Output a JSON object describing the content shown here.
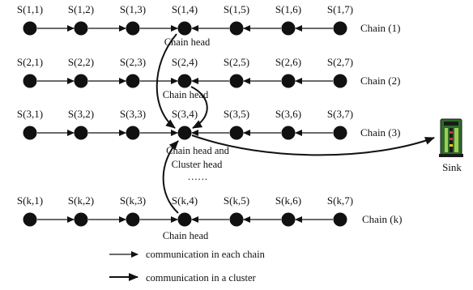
{
  "diagram": {
    "rows": [
      {
        "nodes": [
          "S(1,1)",
          "S(1,2)",
          "S(1,3)",
          "S(1,4)",
          "S(1,5)",
          "S(1,6)",
          "S(1,7)"
        ],
        "chain_label": "Chain (1)",
        "head_label": "Chain head"
      },
      {
        "nodes": [
          "S(2,1)",
          "S(2,2)",
          "S(2,3)",
          "S(2,4)",
          "S(2,5)",
          "S(2,6)",
          "S(2,7)"
        ],
        "chain_label": "Chain (2)",
        "head_label": "Chain head"
      },
      {
        "nodes": [
          "S(3,1)",
          "S(3,2)",
          "S(3,3)",
          "S(3,4)",
          "S(3,5)",
          "S(3,6)",
          "S(3,7)"
        ],
        "chain_label": "Chain (3)",
        "head_label_line1": "Chain head and",
        "head_label_line2": "Cluster head"
      },
      {
        "nodes": [
          "S(k,1)",
          "S(k,2)",
          "S(k,3)",
          "S(k,4)",
          "S(k,5)",
          "S(k,6)",
          "S(k,7)"
        ],
        "chain_label": "Chain (k)",
        "head_label": "Chain head"
      }
    ],
    "ellipsis": "……",
    "sink_label": "Sink",
    "legend": {
      "chain_comm": "communication in each chain",
      "cluster_comm": "communication in a cluster"
    },
    "colors": {
      "node": "#111111",
      "arrow": "#111111",
      "sink_body": "#2e6b2a",
      "sink_dark": "#1a1a1a",
      "sink_light": "#9ccf57"
    }
  }
}
